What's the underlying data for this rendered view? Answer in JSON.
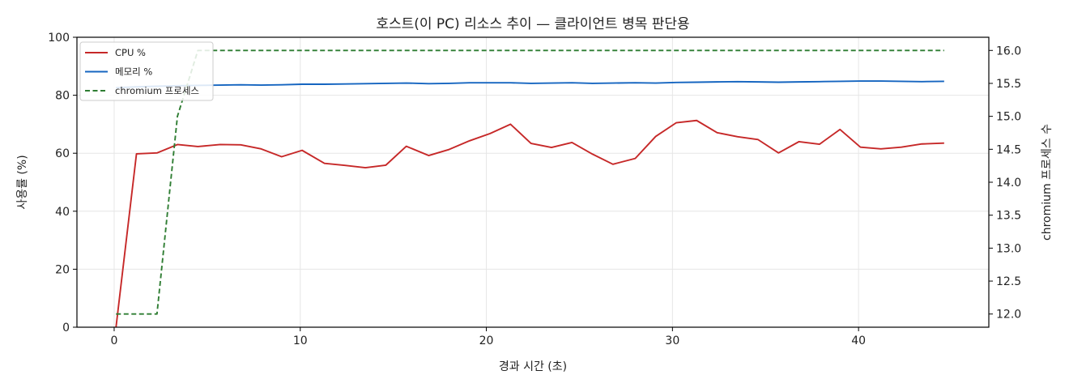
{
  "chart_data": {
    "type": "line",
    "title": "호스트(이 PC) 리소스 추이 — 클라이언트 병목 판단용",
    "xlabel": "경과 시간 (초)",
    "ylabel": "사용률 (%)",
    "y2label": "chromium 프로세스 수",
    "xlim": [
      -2,
      47
    ],
    "ylim": [
      0,
      100
    ],
    "y2lim": [
      11.8,
      16.2
    ],
    "x_ticks": [
      0,
      10,
      20,
      30,
      40
    ],
    "y_ticks": [
      0,
      20,
      40,
      60,
      80,
      100
    ],
    "y2_ticks": [
      "12.0",
      "12.5",
      "13.0",
      "13.5",
      "14.0",
      "14.5",
      "15.0",
      "15.5",
      "16.0"
    ],
    "grid": true,
    "legend_position": "top-left",
    "x": [
      0.1,
      1.2,
      2.3,
      3.4,
      4.5,
      5.7,
      6.8,
      7.9,
      9.0,
      10.1,
      11.3,
      12.4,
      13.5,
      14.6,
      15.7,
      16.9,
      18.0,
      19.1,
      20.2,
      21.3,
      22.4,
      23.5,
      24.6,
      25.7,
      26.8,
      28.0,
      29.1,
      30.2,
      31.3,
      32.4,
      33.5,
      34.6,
      35.7,
      36.8,
      37.9,
      39.0,
      40.1,
      41.2,
      42.3,
      43.4,
      44.6
    ],
    "series": [
      {
        "name": "CPU %",
        "axis": "left",
        "color": "#c62828",
        "style": "solid",
        "values": [
          0,
          59.8,
          60.1,
          63.0,
          62.3,
          63.0,
          62.9,
          61.5,
          58.8,
          61.0,
          56.5,
          55.8,
          55.0,
          55.9,
          62.4,
          59.2,
          61.3,
          64.3,
          66.8,
          70.0,
          63.4,
          62.0,
          63.7,
          59.7,
          56.2,
          58.2,
          65.8,
          70.5,
          71.3,
          67.1,
          65.7,
          64.7,
          60.1,
          64.0,
          63.1,
          68.2,
          62.1,
          61.5,
          62.1,
          63.2,
          63.5
        ]
      },
      {
        "name": "메모리 %",
        "axis": "left",
        "color": "#1565c0",
        "style": "solid",
        "values": [
          82.6,
          82.9,
          83.1,
          83.3,
          83.4,
          83.5,
          83.6,
          83.5,
          83.6,
          83.8,
          83.8,
          83.9,
          84.0,
          84.1,
          84.2,
          84.0,
          84.1,
          84.3,
          84.3,
          84.3,
          84.1,
          84.2,
          84.3,
          84.1,
          84.2,
          84.3,
          84.2,
          84.4,
          84.5,
          84.6,
          84.7,
          84.6,
          84.5,
          84.6,
          84.7,
          84.8,
          84.9,
          84.9,
          84.8,
          84.7,
          84.8
        ]
      },
      {
        "name": "chromium 프로세스",
        "axis": "right",
        "color": "#2e7d32",
        "style": "dashed",
        "values": [
          12,
          12,
          12,
          15,
          16,
          16,
          16,
          16,
          16,
          16,
          16,
          16,
          16,
          16,
          16,
          16,
          16,
          16,
          16,
          16,
          16,
          16,
          16,
          16,
          16,
          16,
          16,
          16,
          16,
          16,
          16,
          16,
          16,
          16,
          16,
          16,
          16,
          16,
          16,
          16,
          16
        ]
      }
    ]
  }
}
